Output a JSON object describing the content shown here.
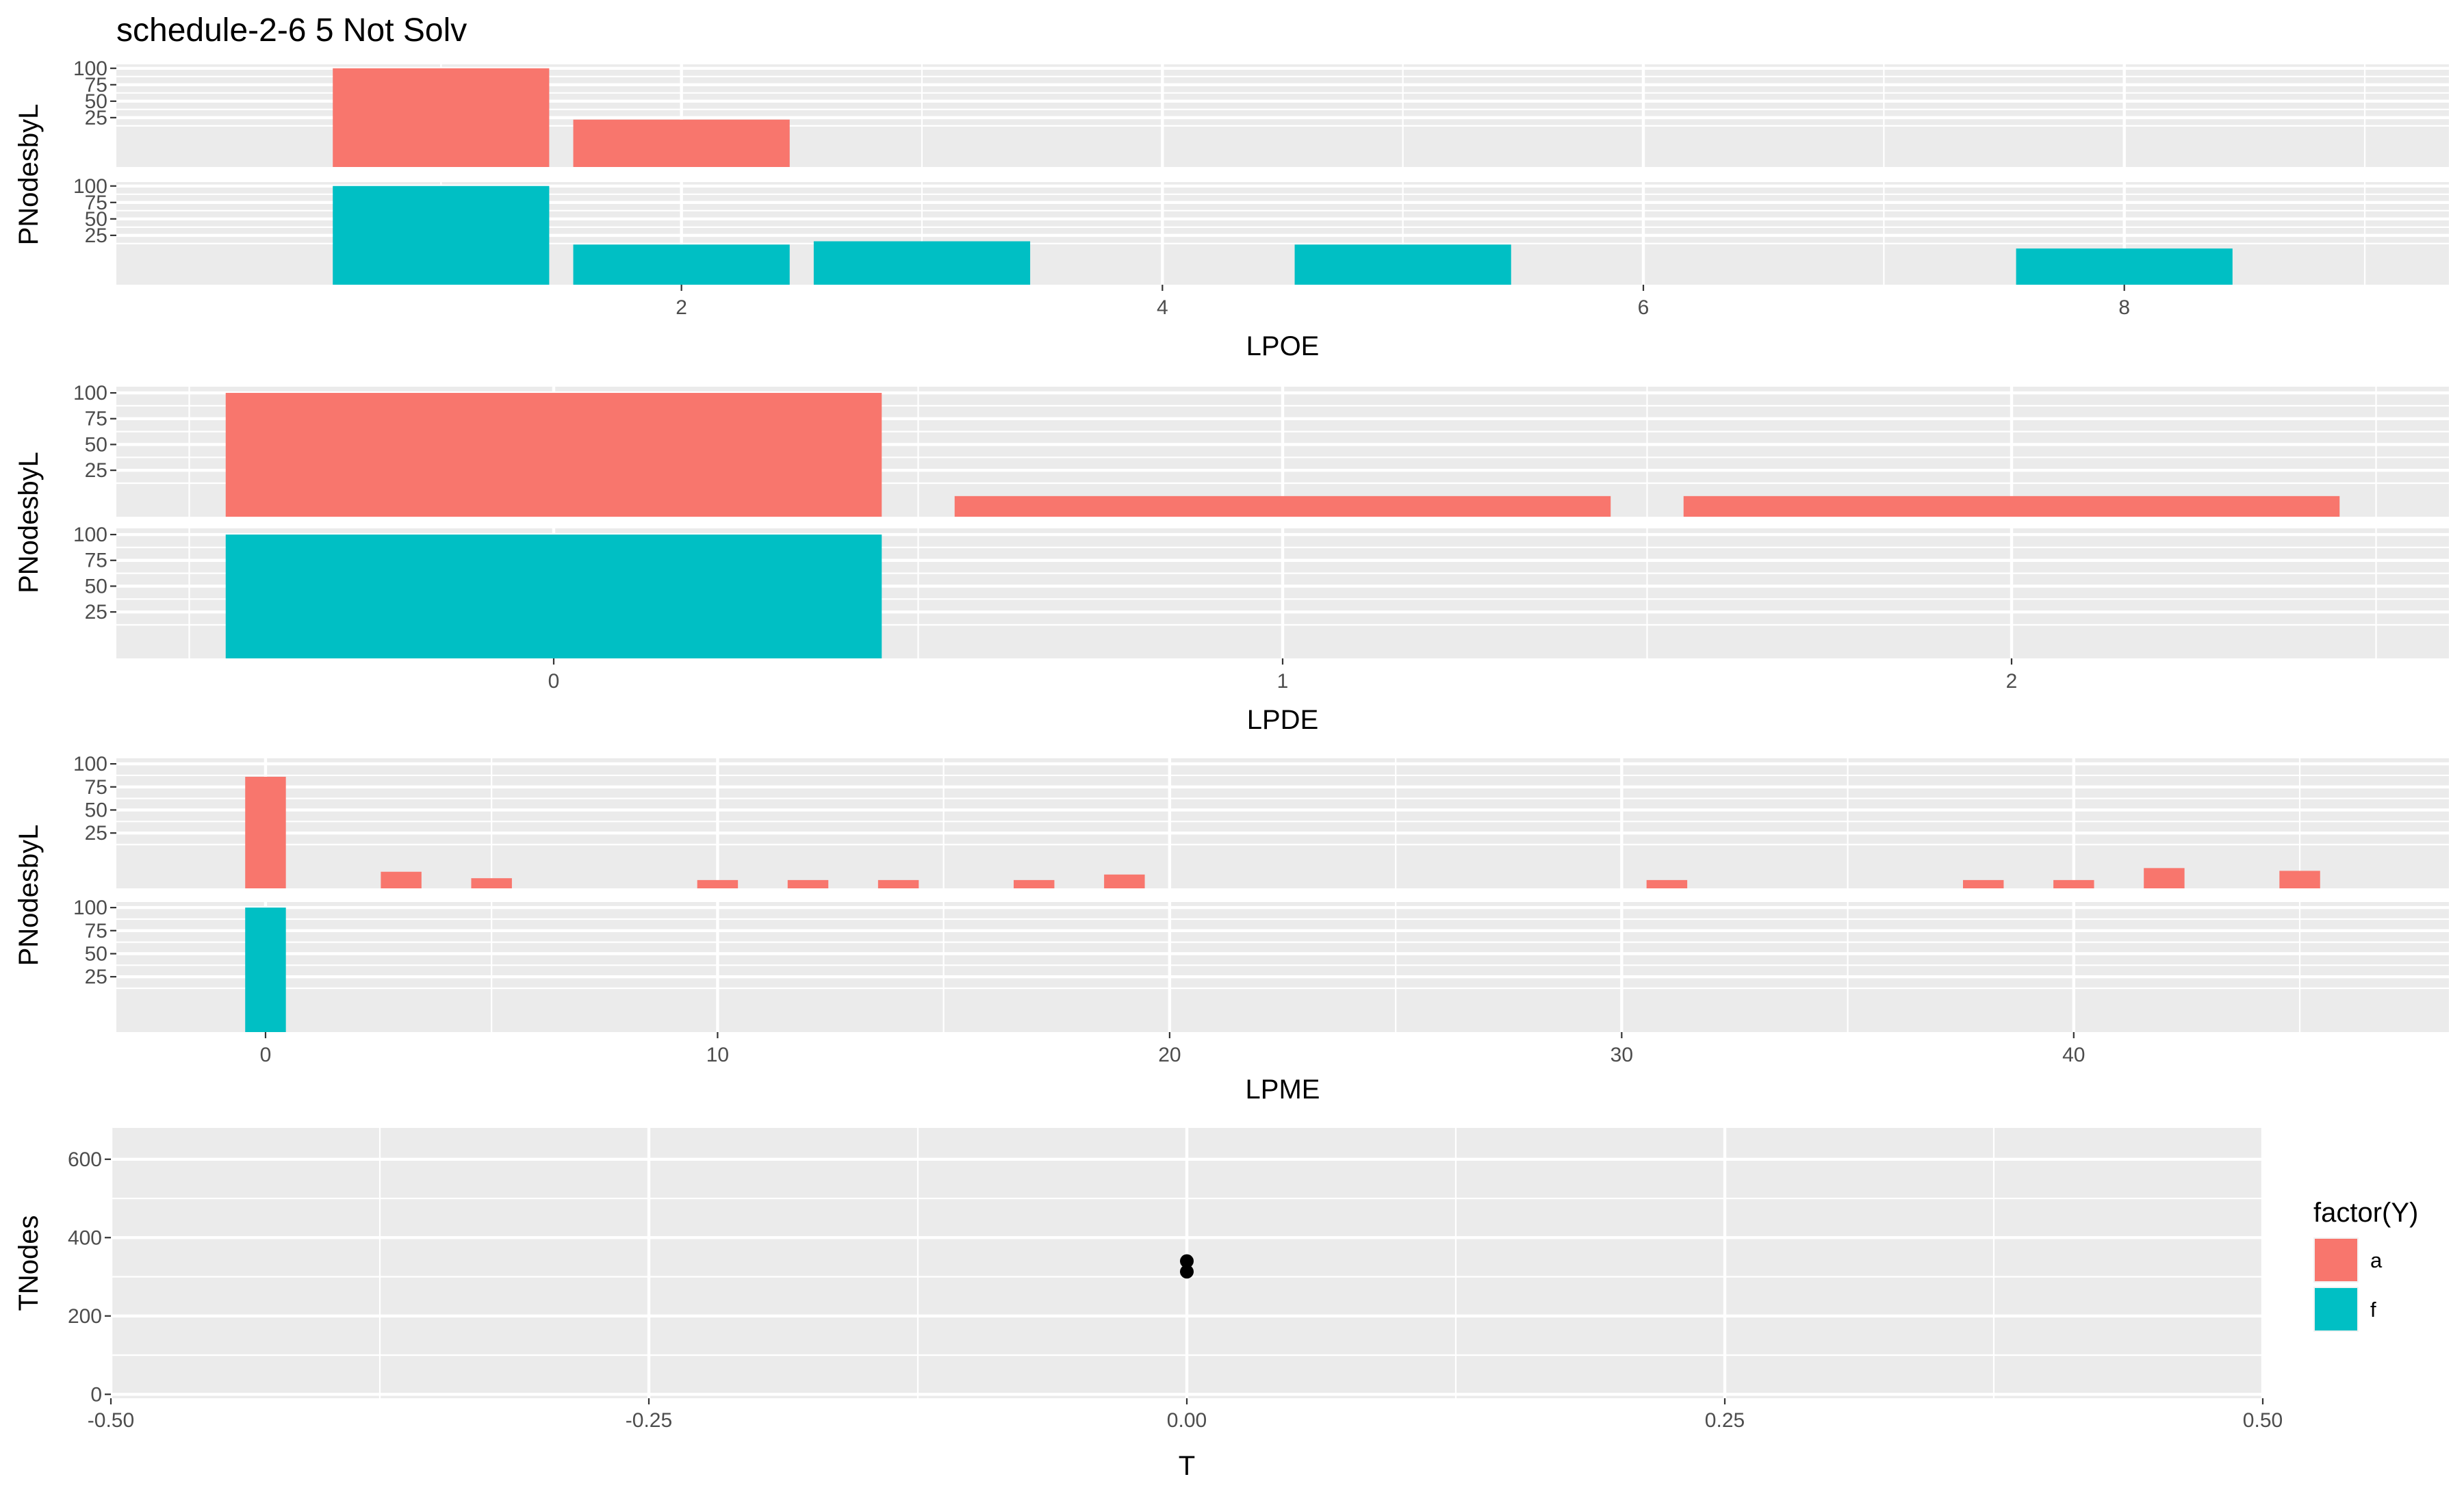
{
  "title": "schedule-2-6 5 Not Solv",
  "legend": {
    "title": "factor(Y)",
    "items": [
      {
        "label": "a",
        "color": "#F8766D"
      },
      {
        "label": "f",
        "color": "#00BFC4"
      }
    ]
  },
  "colors": {
    "a": "#F8766D",
    "f": "#00BFC4",
    "point": "#000000",
    "panel": "#EBEBEB"
  },
  "chart_data": [
    {
      "type": "bar",
      "title": "schedule-2-6 5 Not Solv",
      "xlabel": "LPOE",
      "ylabel": "PNodesbyL",
      "facets": [
        "a",
        "f"
      ],
      "xlim": [
        -0.35,
        9.35
      ],
      "ylim": [
        -50,
        106
      ],
      "xticks": [
        2,
        4,
        6,
        8
      ],
      "yticks": [
        25,
        50,
        75,
        100
      ],
      "grid": true,
      "series": [
        {
          "name": "a",
          "x": [
            1,
            2
          ],
          "values": [
            100,
            22
          ]
        },
        {
          "name": "f",
          "x": [
            1,
            2,
            3,
            5,
            8
          ],
          "values": [
            100,
            11,
            16,
            11,
            5
          ]
        }
      ]
    },
    {
      "type": "bar",
      "xlabel": "LPDE",
      "ylabel": "PNodesbyL",
      "facets": [
        "a",
        "f"
      ],
      "xlim": [
        -0.6,
        2.6
      ],
      "ylim": [
        -20,
        106
      ],
      "xticks": [
        0,
        1,
        2
      ],
      "yticks": [
        25,
        50,
        75,
        100
      ],
      "grid": true,
      "series": [
        {
          "name": "a",
          "x": [
            0,
            1,
            2
          ],
          "values": [
            100,
            0,
            0
          ]
        },
        {
          "name": "f",
          "x": [
            0
          ],
          "values": [
            100
          ]
        }
      ]
    },
    {
      "type": "bar",
      "xlabel": "LPME",
      "ylabel": "PNodesbyL",
      "facets": [
        "a",
        "f"
      ],
      "xlim": [
        -3.3,
        48.3
      ],
      "ylim": [
        -35,
        106
      ],
      "xticks": [
        0,
        10,
        20,
        30,
        40
      ],
      "yticks": [
        25,
        50,
        75,
        100
      ],
      "grid": true,
      "series": [
        {
          "name": "a",
          "x": [
            0,
            3,
            5,
            10,
            12,
            14,
            17,
            19,
            31,
            38,
            40,
            42,
            45
          ],
          "values": [
            86,
            -17,
            -24,
            -26,
            -26,
            -26,
            -26,
            -20,
            -26,
            -26,
            -26,
            -13,
            -16
          ]
        },
        {
          "name": "f",
          "x": [
            0
          ],
          "values": [
            100
          ]
        }
      ]
    },
    {
      "type": "scatter",
      "xlabel": "T",
      "ylabel": "TNodes",
      "xlim": [
        -0.5,
        0.5
      ],
      "ylim": [
        -10,
        680
      ],
      "xticks": [
        -0.5,
        -0.25,
        0,
        0.25,
        0.5
      ],
      "xtick_labels": [
        "-0.50",
        "-0.25",
        "0.00",
        "0.25",
        "0.50"
      ],
      "yticks": [
        0,
        200,
        400,
        600
      ],
      "grid": true,
      "points": [
        {
          "x": 0,
          "y": 340
        },
        {
          "x": 0,
          "y": 313
        }
      ]
    }
  ]
}
